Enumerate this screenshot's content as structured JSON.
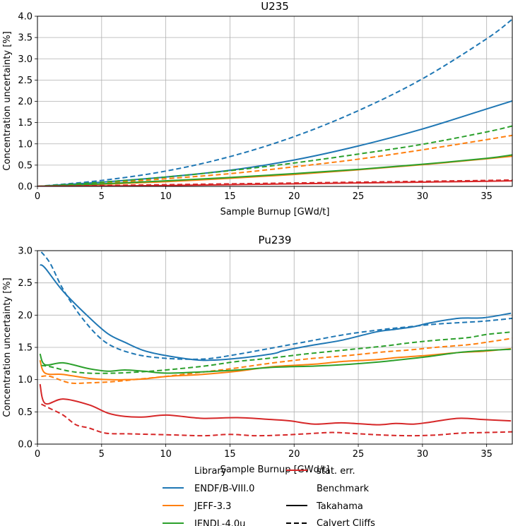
{
  "colors": {
    "ENDF/B-VIII.0": "#1f77b4",
    "JEFF-3.3": "#ff7f0e",
    "JENDL-4.0u": "#2ca02c",
    "stat. err.": "#d62728",
    "grid": "#b0b0b0"
  },
  "legend": {
    "library_header": "Library",
    "benchmark_header": "Benchmark",
    "entries": [
      {
        "label": "ENDF/B-VIII.0",
        "color": "#1f77b4",
        "style": "solid"
      },
      {
        "label": "JEFF-3.3",
        "color": "#ff7f0e",
        "style": "solid"
      },
      {
        "label": "JENDL-4.0u",
        "color": "#2ca02c",
        "style": "solid"
      },
      {
        "label": "stat. err.",
        "color": "#d62728",
        "style": "solid"
      },
      {
        "label": "Takahama",
        "color": "#000000",
        "style": "solid"
      },
      {
        "label": "Calvert Cliffs",
        "color": "#000000",
        "style": "dashed"
      }
    ]
  },
  "chart_data": [
    {
      "type": "line",
      "title": "U235",
      "xlabel": "Sample Burnup [GWd/t]",
      "ylabel": "Concentration uncertainty [%]",
      "xlim": [
        0,
        37
      ],
      "ylim": [
        0,
        4.0
      ],
      "xticks": [
        "0",
        "5",
        "10",
        "15",
        "20",
        "25",
        "30",
        "35"
      ],
      "xtick_values": [
        0,
        5,
        10,
        15,
        20,
        25,
        30,
        35
      ],
      "yticks": [
        "0.0",
        "0.5",
        "1.0",
        "1.5",
        "2.0",
        "2.5",
        "3.0",
        "3.5",
        "4.0"
      ],
      "ytick_values": [
        0,
        0.5,
        1.0,
        1.5,
        2.0,
        2.5,
        3.0,
        3.5,
        4.0
      ],
      "grid": true,
      "series": [
        {
          "name": "ENDF/B-VIII.0 Takahama",
          "library": "ENDF/B-VIII.0",
          "benchmark": "Takahama",
          "style": "solid",
          "x": [
            0,
            5,
            10,
            15,
            20,
            25,
            30,
            35,
            37
          ],
          "y": [
            0,
            0.1,
            0.22,
            0.38,
            0.62,
            0.95,
            1.35,
            1.82,
            2.01
          ]
        },
        {
          "name": "ENDF/B-VIII.0 Calvert Cliffs",
          "library": "ENDF/B-VIII.0",
          "benchmark": "Calvert Cliffs",
          "style": "dashed",
          "x": [
            0,
            5,
            10,
            15,
            20,
            25,
            30,
            35,
            37
          ],
          "y": [
            0,
            0.14,
            0.36,
            0.7,
            1.17,
            1.78,
            2.53,
            3.47,
            3.93
          ]
        },
        {
          "name": "JEFF-3.3 Takahama",
          "library": "JEFF-3.3",
          "benchmark": "Takahama",
          "style": "solid",
          "x": [
            0,
            5,
            10,
            15,
            20,
            25,
            30,
            35,
            37
          ],
          "y": [
            0,
            0.05,
            0.11,
            0.19,
            0.28,
            0.39,
            0.51,
            0.65,
            0.71
          ]
        },
        {
          "name": "JEFF-3.3 Calvert Cliffs",
          "library": "JEFF-3.3",
          "benchmark": "Calvert Cliffs",
          "style": "dashed",
          "x": [
            0,
            5,
            10,
            15,
            20,
            25,
            30,
            35,
            37
          ],
          "y": [
            0,
            0.08,
            0.18,
            0.3,
            0.46,
            0.64,
            0.86,
            1.1,
            1.2
          ]
        },
        {
          "name": "JENDL-4.0u Takahama",
          "library": "JENDL-4.0u",
          "benchmark": "Takahama",
          "style": "solid",
          "x": [
            0,
            5,
            10,
            15,
            20,
            25,
            30,
            35,
            37
          ],
          "y": [
            0,
            0.06,
            0.13,
            0.21,
            0.3,
            0.4,
            0.52,
            0.66,
            0.74
          ]
        },
        {
          "name": "JENDL-4.0u Calvert Cliffs",
          "library": "JENDL-4.0u",
          "benchmark": "Calvert Cliffs",
          "style": "dashed",
          "x": [
            0,
            5,
            10,
            15,
            20,
            25,
            30,
            35,
            37
          ],
          "y": [
            0,
            0.1,
            0.22,
            0.37,
            0.55,
            0.76,
            0.99,
            1.28,
            1.42
          ]
        },
        {
          "name": "stat. err. Takahama",
          "library": "stat. err.",
          "benchmark": "Takahama",
          "style": "solid",
          "x": [
            0,
            5,
            10,
            15,
            20,
            25,
            30,
            35,
            37
          ],
          "y": [
            0,
            0.01,
            0.02,
            0.04,
            0.06,
            0.08,
            0.1,
            0.12,
            0.13
          ]
        },
        {
          "name": "stat. err. Calvert Cliffs",
          "library": "stat. err.",
          "benchmark": "Calvert Cliffs",
          "style": "dashed",
          "x": [
            0,
            5,
            10,
            15,
            20,
            25,
            30,
            35,
            37
          ],
          "y": [
            0,
            0.02,
            0.04,
            0.06,
            0.08,
            0.1,
            0.12,
            0.14,
            0.15
          ]
        }
      ]
    },
    {
      "type": "line",
      "title": "Pu239",
      "xlabel": "Sample Burnup [GWd/t]",
      "ylabel": "Concentration uncertainty [%]",
      "xlim": [
        0,
        37
      ],
      "ylim": [
        0,
        3.0
      ],
      "xticks": [
        "0",
        "5",
        "10",
        "15",
        "20",
        "25",
        "30",
        "35"
      ],
      "xtick_values": [
        0,
        5,
        10,
        15,
        20,
        25,
        30,
        35
      ],
      "yticks": [
        "0.0",
        "0.5",
        "1.0",
        "1.5",
        "2.0",
        "2.5",
        "3.0"
      ],
      "ytick_values": [
        0,
        0.5,
        1.0,
        1.5,
        2.0,
        2.5,
        3.0
      ],
      "grid": true,
      "series": [
        {
          "name": "ENDF/B-VIII.0 Takahama",
          "library": "ENDF/B-VIII.0",
          "benchmark": "Takahama",
          "style": "solid",
          "x": [
            0.2,
            0.6,
            2.0,
            4.0,
            5.5,
            6.8,
            8.3,
            10.1,
            12.8,
            15.6,
            18.3,
            19.0,
            19.7,
            21.6,
            23.7,
            26.4,
            27.9,
            29.3,
            30.6,
            32.8,
            34.8,
            36.9
          ],
          "y": [
            2.78,
            2.73,
            2.37,
            1.97,
            1.71,
            1.58,
            1.45,
            1.37,
            1.3,
            1.33,
            1.4,
            1.44,
            1.47,
            1.54,
            1.61,
            1.74,
            1.78,
            1.82,
            1.88,
            1.95,
            1.96,
            2.03
          ]
        },
        {
          "name": "ENDF/B-VIII.0 Calvert Cliffs",
          "library": "ENDF/B-VIII.0",
          "benchmark": "Calvert Cliffs",
          "style": "dashed",
          "x": [
            0.3,
            1.0,
            2.0,
            3.5,
            5.3,
            7.5,
            10.0,
            13.0,
            15.5,
            18.0,
            21.0,
            24.0,
            27.0,
            29.0,
            31.0,
            33.5,
            35.0,
            37.0
          ],
          "y": [
            2.98,
            2.8,
            2.4,
            1.95,
            1.58,
            1.4,
            1.33,
            1.32,
            1.39,
            1.48,
            1.59,
            1.7,
            1.78,
            1.82,
            1.86,
            1.89,
            1.91,
            1.95
          ]
        },
        {
          "name": "JEFF-3.3 Takahama",
          "library": "JEFF-3.3",
          "benchmark": "Takahama",
          "style": "solid",
          "x": [
            0.2,
            0.6,
            2.0,
            4.0,
            5.5,
            6.8,
            8.3,
            10.1,
            12.8,
            15.6,
            18.3,
            21.6,
            23.7,
            26.4,
            27.9,
            29.3,
            30.6,
            32.8,
            34.8,
            36.9
          ],
          "y": [
            1.3,
            1.1,
            1.08,
            1.02,
            1.0,
            1.0,
            1.01,
            1.05,
            1.08,
            1.13,
            1.2,
            1.24,
            1.28,
            1.31,
            1.34,
            1.36,
            1.38,
            1.42,
            1.44,
            1.48
          ]
        },
        {
          "name": "JEFF-3.3 Calvert Cliffs",
          "library": "JEFF-3.3",
          "benchmark": "Calvert Cliffs",
          "style": "dashed",
          "x": [
            0.3,
            1.0,
            2.5,
            4.0,
            6.0,
            8.0,
            10.0,
            13.0,
            15.5,
            18.0,
            21.0,
            24.0,
            27.0,
            29.0,
            31.0,
            33.5,
            35.0,
            37.0
          ],
          "y": [
            1.05,
            1.05,
            0.95,
            0.95,
            0.97,
            1.01,
            1.05,
            1.12,
            1.18,
            1.25,
            1.32,
            1.37,
            1.43,
            1.46,
            1.5,
            1.54,
            1.58,
            1.64
          ]
        },
        {
          "name": "JENDL-4.0u Takahama",
          "library": "JENDL-4.0u",
          "benchmark": "Takahama",
          "style": "solid",
          "x": [
            0.2,
            0.6,
            2.0,
            4.0,
            5.5,
            6.8,
            8.3,
            10.1,
            12.8,
            15.6,
            18.3,
            21.6,
            23.7,
            26.4,
            27.9,
            29.3,
            30.6,
            32.8,
            34.8,
            36.9
          ],
          "y": [
            1.4,
            1.23,
            1.26,
            1.17,
            1.13,
            1.15,
            1.13,
            1.1,
            1.12,
            1.15,
            1.19,
            1.21,
            1.23,
            1.27,
            1.3,
            1.33,
            1.36,
            1.42,
            1.45,
            1.47
          ]
        },
        {
          "name": "JENDL-4.0u Calvert Cliffs",
          "library": "JENDL-4.0u",
          "benchmark": "Calvert Cliffs",
          "style": "dashed",
          "x": [
            0.3,
            1.0,
            2.5,
            4.0,
            6.0,
            8.0,
            10.0,
            13.0,
            15.5,
            18.0,
            21.0,
            24.0,
            27.0,
            29.0,
            31.0,
            33.5,
            35.0,
            37.0
          ],
          "y": [
            1.22,
            1.2,
            1.13,
            1.1,
            1.1,
            1.12,
            1.15,
            1.21,
            1.28,
            1.33,
            1.4,
            1.46,
            1.52,
            1.57,
            1.61,
            1.65,
            1.7,
            1.74
          ]
        },
        {
          "name": "stat. err. Takahama",
          "library": "stat. err.",
          "benchmark": "Takahama",
          "style": "solid",
          "x": [
            0.2,
            0.6,
            2.0,
            4.0,
            5.5,
            6.8,
            8.3,
            10.1,
            12.8,
            15.6,
            18.3,
            19.7,
            21.6,
            23.7,
            26.4,
            27.9,
            29.3,
            30.6,
            32.8,
            34.8,
            36.9
          ],
          "y": [
            0.93,
            0.63,
            0.7,
            0.61,
            0.48,
            0.43,
            0.42,
            0.45,
            0.4,
            0.41,
            0.38,
            0.36,
            0.31,
            0.33,
            0.3,
            0.32,
            0.31,
            0.34,
            0.4,
            0.38,
            0.36
          ]
        },
        {
          "name": "stat. err. Calvert Cliffs",
          "library": "stat. err.",
          "benchmark": "Calvert Cliffs",
          "style": "dashed",
          "x": [
            0.3,
            1.0,
            2.0,
            3.0,
            4.0,
            5.3,
            7.0,
            9.0,
            11.0,
            13.0,
            15.0,
            17.0,
            19.0,
            21.0,
            23.0,
            25.0,
            27.0,
            29.0,
            31.0,
            33.0,
            35.0,
            37.0
          ],
          "y": [
            0.62,
            0.55,
            0.45,
            0.3,
            0.25,
            0.17,
            0.16,
            0.15,
            0.14,
            0.13,
            0.15,
            0.13,
            0.14,
            0.16,
            0.18,
            0.16,
            0.14,
            0.13,
            0.14,
            0.17,
            0.18,
            0.19
          ]
        }
      ]
    }
  ]
}
